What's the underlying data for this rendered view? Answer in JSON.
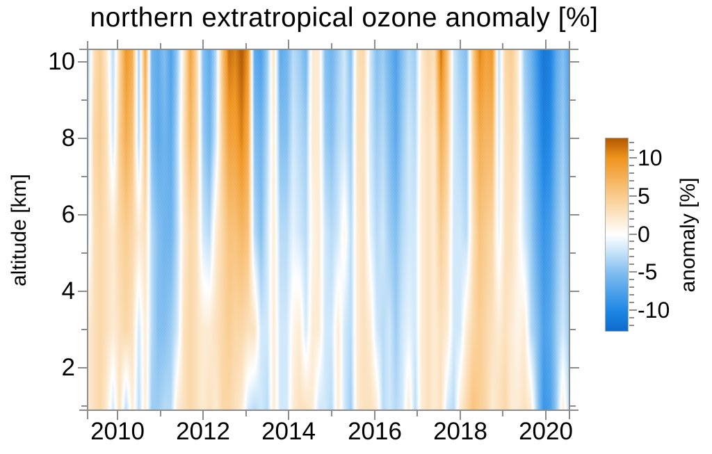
{
  "title": "northern extratropical ozone anomaly [%]",
  "x_axis": {
    "min": 2009.32,
    "max": 2020.55,
    "major_ticks": [
      2010,
      2012,
      2014,
      2016,
      2018,
      2020
    ],
    "major_tick_labels": [
      "2010",
      "2012",
      "2014",
      "2016",
      "2018",
      "2020"
    ],
    "minor_ticks": [
      2011,
      2013,
      2015,
      2017,
      2019
    ]
  },
  "y_axis": {
    "label": "altitude [km]",
    "min": 0.9,
    "max": 10.3,
    "major_ticks": [
      2,
      4,
      6,
      8,
      10
    ],
    "major_tick_labels": [
      "2",
      "4",
      "6",
      "8",
      "10"
    ],
    "minor_ticks": [
      1,
      3,
      5,
      7,
      9
    ]
  },
  "colorbar": {
    "label": "anomaly [%]",
    "min": -12.6,
    "max": 12.6,
    "major_ticks": [
      10,
      5,
      0,
      -5,
      -10
    ],
    "major_tick_labels": [
      "10",
      "5",
      "0",
      "-5",
      "-10"
    ],
    "minor_tick_step": 1,
    "stops": [
      {
        "value": -12.6,
        "color": "#0D6BCE"
      },
      {
        "value": -10.0,
        "color": "#1E87E5"
      },
      {
        "value": -5.0,
        "color": "#7FBDEF"
      },
      {
        "value": -2.0,
        "color": "#CFE8FA"
      },
      {
        "value": 0.0,
        "color": "#FFFFFF"
      },
      {
        "value": 2.0,
        "color": "#FCEBD2"
      },
      {
        "value": 5.0,
        "color": "#FACC8E"
      },
      {
        "value": 10.0,
        "color": "#F0941E"
      },
      {
        "value": 12.6,
        "color": "#B35A00"
      }
    ]
  },
  "chart_data": {
    "type": "heatmap",
    "title": "northern extratropical ozone anomaly [%]",
    "xlabel": "",
    "ylabel": "altitude [km]",
    "xlim": [
      2009.32,
      2020.55
    ],
    "ylim": [
      0.9,
      10.3
    ],
    "colorbar_range": [
      -12.6,
      12.6
    ],
    "legend_position": "right",
    "grid": false,
    "x_years": {
      "start": 2009.3,
      "step": 0.15,
      "count": 76
    },
    "altitudes_km": [
      10.3,
      8.0,
      5.5,
      3.0,
      0.9
    ],
    "anomaly_percent": [
      [
        -4,
        3,
        5,
        2,
        -3,
        4,
        10,
        8,
        -4,
        9,
        -6,
        -7,
        -5,
        -8,
        -4,
        2,
        9,
        4,
        -5,
        -7,
        -3,
        6,
        12,
        11,
        13,
        10,
        -7,
        -8,
        -4,
        3,
        -7,
        -6,
        -3,
        -4,
        -6,
        2,
        2,
        -5,
        -6,
        -4,
        -2,
        -5,
        3,
        4,
        -2,
        -5,
        -4,
        -6,
        -8,
        -5,
        -3,
        -4,
        2,
        4,
        3,
        12,
        6,
        -2,
        -4,
        -5,
        5,
        11,
        9,
        10,
        -3,
        4,
        5,
        2,
        -4,
        -6,
        -9,
        -12,
        -11,
        -7,
        -5,
        -8
      ],
      [
        -3,
        4,
        5,
        3,
        -2,
        5,
        8,
        6,
        -3,
        6,
        -5,
        -7,
        -6,
        -7,
        -3,
        3,
        7,
        4,
        -4,
        -6,
        -2,
        5,
        9,
        9,
        11,
        8,
        -5,
        -6,
        -3,
        2,
        -5,
        -5,
        -2,
        -3,
        -4,
        2,
        2,
        -4,
        -5,
        -3,
        -2,
        -4,
        3,
        3,
        -2,
        -4,
        -3,
        -5,
        -7,
        -4,
        -2,
        -3,
        2,
        3,
        2,
        8,
        5,
        -2,
        -3,
        -4,
        4,
        8,
        7,
        7,
        -2,
        3,
        4,
        2,
        -3,
        -5,
        -8,
        -11,
        -10,
        -6,
        -4,
        -7
      ],
      [
        -2,
        3,
        4,
        3,
        2,
        4,
        5,
        4,
        2,
        3,
        -3,
        -5,
        -6,
        -6,
        -3,
        2,
        4,
        3,
        -2,
        -3,
        2,
        4,
        6,
        6,
        7,
        6,
        -3,
        -5,
        -2,
        2,
        -3,
        -3,
        -1,
        -2,
        -3,
        1,
        2,
        -2,
        -3,
        -2,
        1,
        -3,
        2,
        3,
        -1,
        -3,
        -2,
        -4,
        -5,
        -3,
        -2,
        -2,
        2,
        3,
        2,
        5,
        3,
        -2,
        -2,
        -3,
        3,
        6,
        5,
        4,
        -1,
        3,
        3,
        1,
        -2,
        -4,
        -7,
        -9,
        -8,
        -5,
        -3,
        -5
      ],
      [
        2,
        3,
        4,
        3,
        2,
        3,
        4,
        3,
        -2,
        2,
        -3,
        -5,
        -5,
        -4,
        -2,
        3,
        4,
        3,
        2,
        2,
        3,
        4,
        5,
        4,
        4,
        3,
        3,
        -2,
        -2,
        2,
        -2,
        -2,
        1,
        2,
        -2,
        2,
        2,
        -2,
        -2,
        2,
        -2,
        -3,
        2,
        3,
        2,
        -2,
        -3,
        -2,
        -4,
        -2,
        -1,
        -2,
        2,
        3,
        2,
        3,
        2,
        -2,
        -2,
        2,
        4,
        5,
        4,
        3,
        2,
        3,
        2,
        1,
        2,
        -3,
        -5,
        -8,
        -7,
        -4,
        -2,
        -4
      ],
      [
        2,
        3,
        4,
        2,
        -2,
        3,
        -3,
        2,
        -3,
        2,
        -4,
        -4,
        -3,
        -3,
        2,
        3,
        4,
        3,
        2,
        3,
        2,
        4,
        4,
        3,
        2,
        -2,
        -3,
        -2,
        -3,
        2,
        -2,
        -2,
        2,
        3,
        3,
        2,
        -2,
        -2,
        -3,
        2,
        -2,
        -4,
        2,
        3,
        3,
        2,
        -3,
        -2,
        -3,
        -2,
        2,
        -3,
        2,
        3,
        2,
        3,
        -2,
        -3,
        2,
        4,
        6,
        5,
        4,
        2,
        3,
        4,
        2,
        2,
        3,
        2,
        -4,
        -9,
        -8,
        -4,
        2,
        -3
      ]
    ]
  }
}
